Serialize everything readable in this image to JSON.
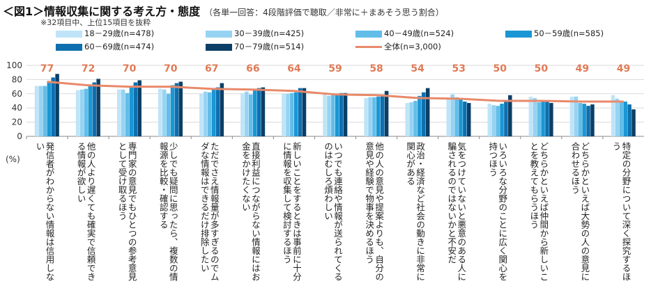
{
  "figure": {
    "title": "＜図1＞情報収集に関する考え方・態度",
    "subtitle": "（各単一回答：4段階評価で聴取／非常に＋まあそう思う割合）",
    "note": "※32項目中、上位15項目を抜粋"
  },
  "colors": {
    "series": [
      "#bfe4f7",
      "#96d3f2",
      "#62bde9",
      "#1a96d4",
      "#0e6fae",
      "#0b3f67"
    ],
    "total_line": "#e8896a",
    "total_label": "#e07a56",
    "grid": "#d9d9d9",
    "axis": "#888888"
  },
  "chart_data": {
    "type": "bar",
    "ylim": [
      0,
      100
    ],
    "yticks": [
      "0",
      "20",
      "40",
      "60",
      "80",
      "100"
    ],
    "unit_label": "(%)",
    "categories": [
      "発信者がわからない情報は信用しない",
      "他の人より遅くても確実で信頼できる情報が欲しい",
      "専門家の意見でもひとつの参考意見として受け取るほう",
      "少しでも疑問に思ったら、複数の情報源を比較・確認する",
      "ただでさえ情報量が多すぎるのでムダな情報はできるだけ排除したい",
      "直接利益につながらない情報にはお金をかけたくない",
      "新しいことをするときは事前に十分に情報を収集して検討するほう",
      "いつでも連絡や情報が送られてくるのはむしろ煩わしい",
      "他の人の意見や提案よりも、自分の意見や経験で物事を決めるほう",
      "政治・経済など社会の動きに非常に関心がある",
      "気をつけていないと悪意のある人に騙されるのではないかと不安だ",
      "いろいろな分野のことに広く関心を持つほう",
      "どちらかといえば仲間から新しいことを教えてもらうほう",
      "どちらかといえば大勢の人の意見に合わせるほう",
      "特定の分野について深く探究するほう"
    ],
    "series": [
      {
        "name": "18－29歳(n=478)",
        "values": [
          71,
          65,
          66,
          67,
          60,
          61,
          60,
          60,
          54,
          47,
          53,
          46,
          56,
          56,
          58
        ]
      },
      {
        "name": "30－39歳(n=425)",
        "values": [
          71,
          66,
          66,
          66,
          63,
          63,
          60,
          57,
          55,
          48,
          59,
          44,
          54,
          56,
          53
        ]
      },
      {
        "name": "40－49歳(n=524)",
        "values": [
          71,
          67,
          61,
          60,
          62,
          59,
          61,
          58,
          55,
          50,
          55,
          43,
          48,
          47,
          50
        ]
      },
      {
        "name": "50－59歳(n=585)",
        "values": [
          76,
          72,
          70,
          72,
          67,
          66,
          62,
          60,
          56,
          57,
          54,
          46,
          50,
          46,
          49
        ]
      },
      {
        "name": "60－69歳(n=474)",
        "values": [
          83,
          76,
          76,
          75,
          69,
          68,
          68,
          61,
          59,
          62,
          49,
          50,
          49,
          43,
          45
        ]
      },
      {
        "name": "70－79歳(n=514)",
        "values": [
          88,
          81,
          79,
          77,
          75,
          69,
          68,
          61,
          64,
          68,
          47,
          58,
          47,
          45,
          38
        ]
      }
    ],
    "total": {
      "name": "全体(n=3,000)",
      "values": [
        77,
        72,
        70,
        70,
        67,
        66,
        64,
        59,
        58,
        54,
        53,
        50,
        50,
        49,
        49
      ]
    }
  }
}
